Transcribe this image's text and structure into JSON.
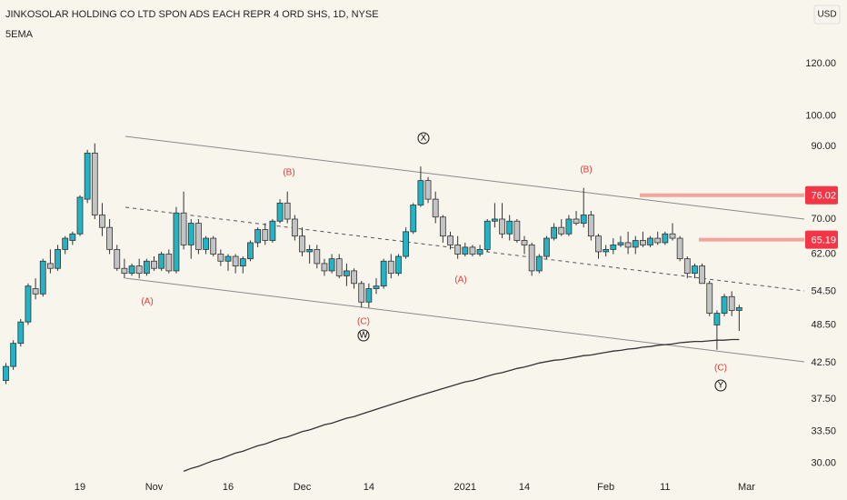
{
  "chart_data": {
    "type": "candlestick",
    "title": "JINKOSOLAR HOLDING CO LTD SPON ADS EACH REPR 4 ORD SHS, 1D, NYSE",
    "currency": "USD",
    "log_scale": true,
    "grid": false,
    "up_color": "#22b3c4",
    "down_color": "#c4c4c4",
    "categories": [
      null,
      null,
      null,
      null,
      null,
      null,
      null,
      null,
      null,
      null,
      "19",
      null,
      null,
      null,
      null,
      null,
      null,
      null,
      null,
      null,
      "Nov",
      null,
      null,
      null,
      null,
      null,
      null,
      null,
      null,
      null,
      "16",
      null,
      null,
      null,
      null,
      null,
      null,
      null,
      null,
      null,
      "Dec",
      null,
      null,
      null,
      null,
      null,
      null,
      null,
      null,
      "14",
      null,
      null,
      null,
      null,
      null,
      null,
      null,
      null,
      null,
      null,
      null,
      null,
      "2021",
      null,
      null,
      null,
      null,
      null,
      null,
      null,
      "14",
      null,
      null,
      null,
      null,
      null,
      null,
      null,
      null,
      null,
      null,
      "Feb",
      null,
      null,
      null,
      null,
      null,
      null,
      null,
      "11",
      null,
      null,
      null,
      null,
      null,
      null,
      null,
      null,
      null,
      null,
      "Mar"
    ],
    "open": [
      40,
      42,
      45.5,
      49,
      55,
      54,
      60,
      59,
      63,
      65,
      66.5,
      75,
      88,
      71,
      68,
      63,
      59,
      58,
      59.5,
      58,
      60.5,
      59,
      62,
      58.5,
      71.5,
      64,
      69,
      63,
      65.5,
      62,
      60.5,
      61.5,
      59.5,
      61,
      64.5,
      67.5,
      65,
      69.5,
      74,
      70,
      66,
      62.5,
      63,
      60,
      58.5,
      61,
      57.5,
      58.5,
      56,
      52.5,
      55,
      55.5,
      60.5,
      58,
      61.5,
      67,
      73.5,
      80,
      75,
      70.5,
      66,
      64,
      62,
      63.5,
      62,
      63,
      69.5,
      70,
      66.5,
      69.5,
      65,
      64,
      58.5,
      61.5,
      65.5,
      68,
      66.5,
      70,
      69,
      71,
      66,
      62.5,
      63,
      64,
      64.5,
      63.5,
      65,
      64,
      65.5,
      64.5,
      66.5,
      65.5,
      61,
      58,
      59.5,
      56,
      48.5,
      50.5,
      53.5,
      51,
      null
    ],
    "high": [
      42.5,
      46,
      49.5,
      56,
      57,
      61,
      63,
      64,
      66,
      67,
      76,
      89,
      91,
      74,
      70,
      64,
      61,
      60,
      61,
      61,
      61.5,
      62.5,
      63,
      73,
      77,
      70,
      70,
      66,
      66,
      63,
      62,
      62,
      61.5,
      65,
      68,
      69,
      70,
      75,
      77,
      71,
      68,
      64,
      64,
      61,
      62,
      62,
      60,
      59,
      56.5,
      56,
      57,
      61,
      62,
      62,
      68,
      74,
      84,
      81,
      77,
      71,
      67,
      66,
      64.5,
      64,
      64,
      70,
      74,
      74,
      71,
      70,
      66,
      64.5,
      62,
      66,
      69,
      70,
      71,
      72,
      78,
      72,
      66.5,
      64,
      65.5,
      66,
      67,
      66,
      67,
      66,
      67,
      67,
      69,
      66,
      61.5,
      60,
      60,
      56.5,
      51,
      54,
      54.5,
      52,
      null
    ],
    "low": [
      39.5,
      41.5,
      45,
      48.5,
      53,
      53.5,
      58,
      58.5,
      62,
      64,
      66,
      74,
      70,
      66,
      62,
      58.5,
      57,
      57.5,
      57,
      57.5,
      58.5,
      58.5,
      58,
      58,
      63,
      61,
      62,
      62,
      61.5,
      59.5,
      58.5,
      58,
      58,
      60.5,
      63.5,
      64,
      64.5,
      69,
      69,
      65,
      61.5,
      60,
      59,
      57.5,
      58,
      57,
      55.5,
      55,
      51.5,
      51.5,
      54,
      55,
      57,
      57.5,
      61,
      66.5,
      73,
      74,
      69,
      64.5,
      63,
      61,
      61.5,
      61.5,
      61.5,
      62.5,
      68,
      65.5,
      65,
      64.5,
      62,
      57.5,
      58,
      61,
      65,
      66,
      66,
      68.5,
      68,
      65,
      61,
      61.5,
      62,
      63.5,
      62,
      62,
      63.5,
      63.5,
      64,
      64,
      65,
      60.5,
      57,
      57,
      56,
      50,
      44.5,
      50,
      50,
      47.5,
      null
    ],
    "close": [
      42,
      45.5,
      49,
      55.5,
      54,
      60.5,
      59,
      63,
      65.5,
      66.5,
      75.5,
      88,
      71,
      68,
      63,
      59,
      58,
      59.5,
      58,
      60.5,
      59,
      62,
      58.5,
      71.5,
      64,
      69,
      63,
      65.5,
      62,
      60.5,
      61.5,
      59.5,
      61,
      64.5,
      67.5,
      65,
      69.5,
      74,
      70,
      66,
      62.5,
      63,
      60,
      58.5,
      61,
      57.5,
      58.5,
      56,
      52.5,
      55,
      55.5,
      60.5,
      58,
      61.5,
      67,
      73.5,
      80,
      75,
      70.5,
      66,
      64,
      62,
      63.5,
      62,
      63,
      69.5,
      70,
      66.5,
      69.5,
      65,
      64,
      58.5,
      61.5,
      65.5,
      68,
      66.5,
      70,
      69,
      71,
      66,
      62.5,
      63,
      64,
      64.5,
      63.5,
      65,
      64,
      65.5,
      64.5,
      66.5,
      65.5,
      61,
      58,
      59.5,
      56,
      50.5,
      50.5,
      53.5,
      51,
      51.5,
      null
    ],
    "ema": {
      "name": "5EMA",
      "color": "#333333",
      "values": [
        null,
        null,
        null,
        null,
        null,
        null,
        null,
        null,
        null,
        null,
        null,
        null,
        null,
        null,
        null,
        null,
        null,
        null,
        null,
        null,
        null,
        null,
        null,
        null,
        29.2,
        29.5,
        29.7,
        30.0,
        30.3,
        30.5,
        30.8,
        31.1,
        31.3,
        31.6,
        31.9,
        32.1,
        32.4,
        32.7,
        32.9,
        33.2,
        33.5,
        33.7,
        34.0,
        34.3,
        34.5,
        34.8,
        35.1,
        35.3,
        35.6,
        35.9,
        36.2,
        36.5,
        36.8,
        37.1,
        37.4,
        37.7,
        38.0,
        38.3,
        38.6,
        38.9,
        39.2,
        39.5,
        39.8,
        40.0,
        40.3,
        40.6,
        40.9,
        41.1,
        41.4,
        41.7,
        41.9,
        42.2,
        42.5,
        42.7,
        42.9,
        43.0,
        43.2,
        43.4,
        43.6,
        43.7,
        43.9,
        44.1,
        44.3,
        44.4,
        44.6,
        44.7,
        44.9,
        45.0,
        45.2,
        45.3,
        45.4,
        45.6,
        45.7,
        45.8,
        45.8,
        45.9,
        46.0,
        46.0,
        46.1,
        46.1,
        null
      ]
    },
    "ylim": [
      28.6,
      149.6
    ],
    "yticks": [
      {
        "value": 120,
        "label": "120.00"
      },
      {
        "value": 100,
        "label": "100.00"
      },
      {
        "value": 90,
        "label": "90.00"
      },
      {
        "value": 70,
        "label": "70.00"
      },
      {
        "value": 62,
        "label": "62.00"
      },
      {
        "value": 54.5,
        "label": "54.50"
      },
      {
        "value": 48.5,
        "label": "48.50"
      },
      {
        "value": 42.5,
        "label": "42.50"
      },
      {
        "value": 37.5,
        "label": "37.50"
      },
      {
        "value": 33.5,
        "label": "33.50"
      },
      {
        "value": 30,
        "label": "30.00"
      }
    ],
    "price_lines": [
      {
        "value": 76.02,
        "color": "#f3a49c",
        "label_color": "#f23645"
      },
      {
        "value": 65.19,
        "color": "#f3a49c",
        "label_color": "#f23645"
      }
    ],
    "annotations": [
      "(A)",
      "(B)",
      "(C)",
      "W",
      "X",
      "(A)",
      "(B)",
      "(C)",
      "Y"
    ]
  }
}
